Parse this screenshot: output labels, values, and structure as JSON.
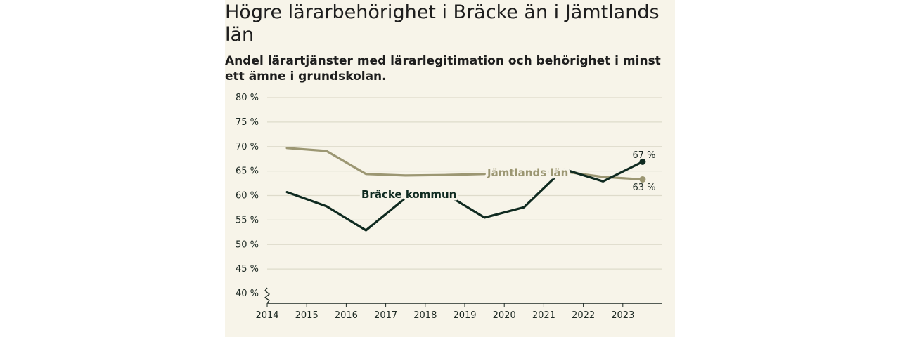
{
  "title": "Högre lärarbehörighet i Bräcke än i Jämtlands län",
  "subtitle": "Andel lärartjänster med lärarlegitimation och behörighet i minst ett ämne i grundskolan.",
  "colors": {
    "background": "#f7f4e9",
    "bracke": "#0f2a20",
    "jamtland": "#9c9773",
    "grid": "#dedbcb",
    "axis": "#1e2a24"
  },
  "chart_data": {
    "type": "line",
    "title": "Högre lärarbehörighet i Bräcke än i Jämtlands län",
    "subtitle": "Andel lärartjänster med lärarlegitimation och behörighet i minst ett ämne i grundskolan.",
    "xlabel": "",
    "ylabel": "",
    "ylim": [
      40,
      80
    ],
    "yticks": [
      40,
      45,
      50,
      55,
      60,
      65,
      70,
      75,
      80
    ],
    "ytick_labels": [
      "40 %",
      "45 %",
      "50 %",
      "55 %",
      "60 %",
      "65 %",
      "70 %",
      "75 %",
      "80 %"
    ],
    "xticks": [
      "2014",
      "2015",
      "2016",
      "2017",
      "2018",
      "2019",
      "2020",
      "2021",
      "2022",
      "2023"
    ],
    "grid": true,
    "series": [
      {
        "name": "Bräcke kommun",
        "x": [
          2014.5,
          2015.5,
          2016.5,
          2017.5,
          2018.5,
          2019.5,
          2020.5,
          2021.5,
          2022.5,
          2023.5
        ],
        "values": [
          60.7,
          57.8,
          52.9,
          59.5,
          60.4,
          55.5,
          57.6,
          65.4,
          62.9,
          66.9
        ],
        "end_label": "67 %"
      },
      {
        "name": "Jämtlands län",
        "x": [
          2014.5,
          2015.5,
          2016.5,
          2017.5,
          2018.5,
          2019.5,
          2020.5,
          2021.5,
          2022.5,
          2023.5
        ],
        "values": [
          69.7,
          69.1,
          64.4,
          64.1,
          64.2,
          64.4,
          64.5,
          64.9,
          63.8,
          63.3
        ],
        "end_label": "63 %"
      }
    ]
  }
}
